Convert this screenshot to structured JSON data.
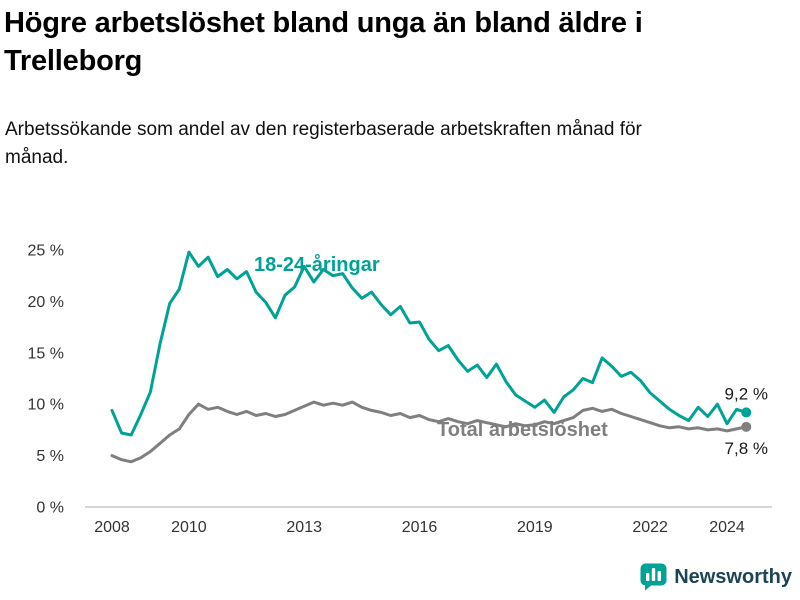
{
  "title": "Högre arbetslöshet bland unga än bland äldre i Trelleborg",
  "subtitle": "Arbetssökande som andel av den registerbaserade arbetskraften månad för månad.",
  "footer": {
    "brand": "Newsworthy"
  },
  "colors": {
    "young": "#00a296",
    "total": "#7f7f7f",
    "axis": "#c9c9c9",
    "tick_text": "#333333",
    "value_text": "#1a1a1a",
    "brand_text": "#1c4455"
  },
  "chart_data": {
    "type": "line",
    "title": "Högre arbetslöshet bland unga än bland äldre i Trelleborg",
    "xlabel": "",
    "ylabel": "",
    "ylim": [
      0,
      25
    ],
    "grid": false,
    "legend_position": "inline-labels",
    "x_ticks": [
      2008,
      2010,
      2013,
      2016,
      2019,
      2022,
      2024
    ],
    "y_ticks": [
      0,
      5,
      10,
      15,
      20,
      25
    ],
    "y_tick_suffix": " %",
    "x_start": 2008,
    "x_step_years": 0.25,
    "series": [
      {
        "name": "18-24-åringar",
        "color_key": "young",
        "end_label": "9,2 %",
        "end_value": 9.2,
        "values": [
          9.4,
          7.2,
          7.0,
          9.0,
          11.2,
          15.9,
          19.8,
          21.2,
          24.8,
          23.4,
          24.3,
          22.4,
          23.1,
          22.2,
          22.9,
          20.9,
          19.9,
          18.4,
          20.6,
          21.4,
          23.4,
          21.9,
          23.1,
          22.5,
          22.7,
          21.3,
          20.3,
          20.9,
          19.7,
          18.7,
          19.5,
          17.9,
          18.0,
          16.3,
          15.2,
          15.7,
          14.3,
          13.2,
          13.8,
          12.6,
          13.9,
          12.2,
          10.9,
          10.3,
          9.7,
          10.4,
          9.2,
          10.7,
          11.4,
          12.5,
          12.1,
          14.5,
          13.7,
          12.7,
          13.1,
          12.3,
          11.1,
          10.3,
          9.5,
          8.9,
          8.4,
          9.7,
          8.8,
          10.0,
          8.1,
          9.5,
          9.2
        ]
      },
      {
        "name": "Total arbetslöshet",
        "color_key": "total",
        "end_label": "7,8 %",
        "end_value": 7.8,
        "values": [
          5.0,
          4.6,
          4.4,
          4.8,
          5.4,
          6.2,
          7.0,
          7.6,
          9.0,
          10.0,
          9.5,
          9.7,
          9.3,
          9.0,
          9.3,
          8.9,
          9.1,
          8.8,
          9.0,
          9.4,
          9.8,
          10.2,
          9.9,
          10.1,
          9.9,
          10.2,
          9.7,
          9.4,
          9.2,
          8.9,
          9.1,
          8.7,
          8.9,
          8.5,
          8.3,
          8.6,
          8.3,
          8.1,
          8.4,
          8.2,
          8.0,
          7.8,
          8.1,
          7.9,
          8.0,
          8.3,
          8.1,
          8.4,
          8.7,
          9.4,
          9.6,
          9.3,
          9.5,
          9.1,
          8.8,
          8.5,
          8.2,
          7.9,
          7.7,
          7.8,
          7.6,
          7.7,
          7.5,
          7.6,
          7.4,
          7.6,
          7.8
        ]
      }
    ]
  }
}
